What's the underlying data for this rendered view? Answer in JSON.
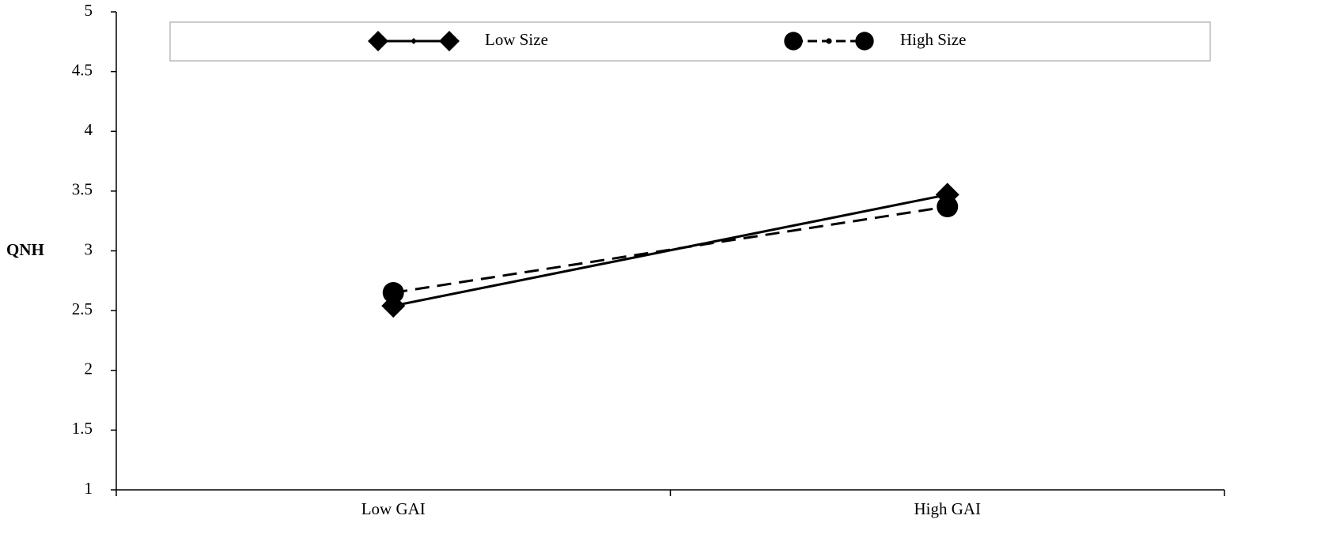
{
  "chart_data": {
    "type": "line",
    "y_label": "QNH",
    "categories": [
      "Low GAI",
      "High GAI"
    ],
    "series": [
      {
        "name": "Low Size",
        "color": "#000000",
        "marker": "diamond",
        "line_style": "solid",
        "values": [
          2.54,
          3.47
        ]
      },
      {
        "name": "High Size",
        "color": "#000000",
        "marker": "circle",
        "line_style": "dashed",
        "values": [
          2.65,
          3.37
        ]
      }
    ],
    "ylim": [
      1,
      5
    ],
    "yticks": [
      1,
      1.5,
      2,
      2.5,
      3,
      3.5,
      4,
      4.5,
      5
    ],
    "grid": false,
    "legend": "top"
  }
}
